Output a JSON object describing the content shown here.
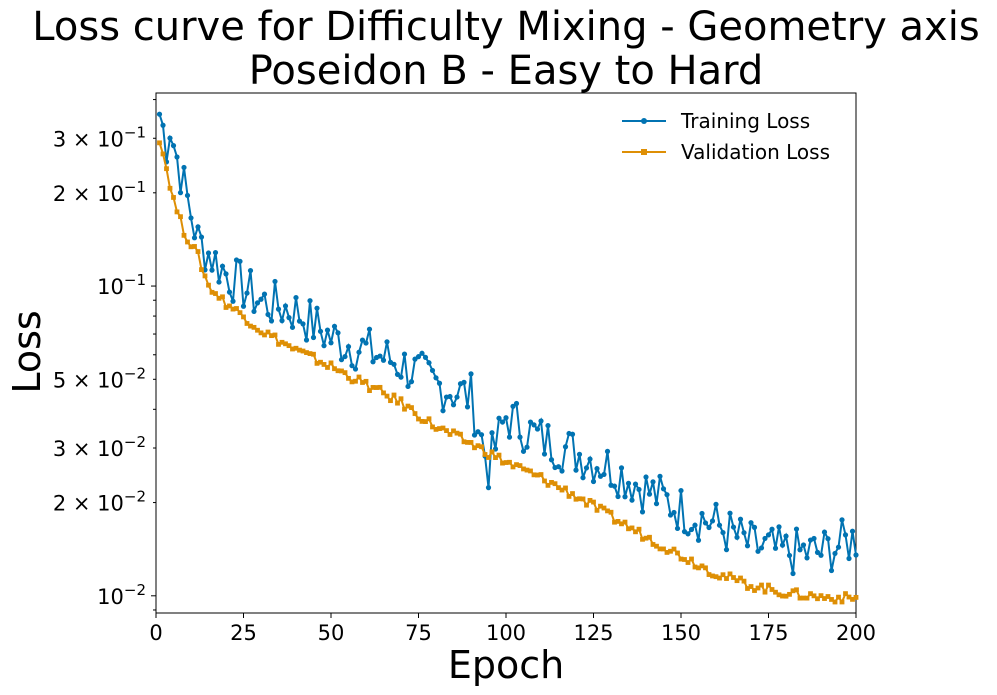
{
  "chart_data": {
    "type": "line",
    "title": "Loss curve for Difficulty Mixing - Geometry axis",
    "subtitle": "Poseidon B - Easy to Hard",
    "xlabel": "Epoch",
    "ylabel": "Loss",
    "y_scale": "log",
    "xlim": [
      0,
      200
    ],
    "ylim": [
      0.0088,
      0.42
    ],
    "grid": false,
    "legend_position": "top-right",
    "x_ticks": [
      {
        "value": 0,
        "label": "0"
      },
      {
        "value": 25,
        "label": "25"
      },
      {
        "value": 50,
        "label": "50"
      },
      {
        "value": 75,
        "label": "75"
      },
      {
        "value": 100,
        "label": "100"
      },
      {
        "value": 125,
        "label": "125"
      },
      {
        "value": 150,
        "label": "150"
      },
      {
        "value": 175,
        "label": "175"
      },
      {
        "value": 200,
        "label": "200"
      }
    ],
    "y_ticks": [
      {
        "value": 0.3,
        "base": "3 × 10",
        "exp": "−1"
      },
      {
        "value": 0.2,
        "base": "2 × 10",
        "exp": "−1"
      },
      {
        "value": 0.1,
        "base": "10",
        "exp": "−1"
      },
      {
        "value": 0.05,
        "base": "5 × 10",
        "exp": "−2"
      },
      {
        "value": 0.03,
        "base": "3 × 10",
        "exp": "−2"
      },
      {
        "value": 0.02,
        "base": "2 × 10",
        "exp": "−2"
      },
      {
        "value": 0.01,
        "base": "10",
        "exp": "−2"
      }
    ],
    "series": [
      {
        "name": "Training Loss",
        "color": "#0173b2",
        "marker": "circle",
        "anchors": [
          [
            1,
            0.36
          ],
          [
            3,
            0.29
          ],
          [
            4,
            0.33
          ],
          [
            5,
            0.29
          ],
          [
            8,
            0.21
          ],
          [
            12,
            0.14
          ],
          [
            20,
            0.11
          ],
          [
            30,
            0.089
          ],
          [
            40,
            0.083
          ],
          [
            50,
            0.068
          ],
          [
            60,
            0.062
          ],
          [
            70,
            0.056
          ],
          [
            80,
            0.048
          ],
          [
            90,
            0.044
          ],
          [
            95,
            0.026
          ],
          [
            100,
            0.038
          ],
          [
            110,
            0.032
          ],
          [
            120,
            0.029
          ],
          [
            130,
            0.026
          ],
          [
            140,
            0.022
          ],
          [
            150,
            0.019
          ],
          [
            160,
            0.017
          ],
          [
            170,
            0.0145
          ],
          [
            180,
            0.0138
          ],
          [
            190,
            0.0138
          ],
          [
            200,
            0.0153
          ]
        ],
        "noise": 0.08
      },
      {
        "name": "Validation Loss",
        "color": "#de8f05",
        "marker": "square",
        "anchors": [
          [
            1,
            0.3
          ],
          [
            3,
            0.24
          ],
          [
            5,
            0.19
          ],
          [
            8,
            0.15
          ],
          [
            12,
            0.125
          ],
          [
            15,
            0.1
          ],
          [
            20,
            0.088
          ],
          [
            25,
            0.08
          ],
          [
            30,
            0.072
          ],
          [
            40,
            0.062
          ],
          [
            50,
            0.055
          ],
          [
            60,
            0.048
          ],
          [
            70,
            0.042
          ],
          [
            80,
            0.035
          ],
          [
            90,
            0.031
          ],
          [
            100,
            0.027
          ],
          [
            110,
            0.024
          ],
          [
            120,
            0.021
          ],
          [
            130,
            0.018
          ],
          [
            140,
            0.0155
          ],
          [
            150,
            0.0135
          ],
          [
            160,
            0.0118
          ],
          [
            170,
            0.0108
          ],
          [
            180,
            0.0102
          ],
          [
            190,
            0.0099
          ],
          [
            200,
            0.0098
          ]
        ],
        "noise": 0.015
      }
    ]
  }
}
